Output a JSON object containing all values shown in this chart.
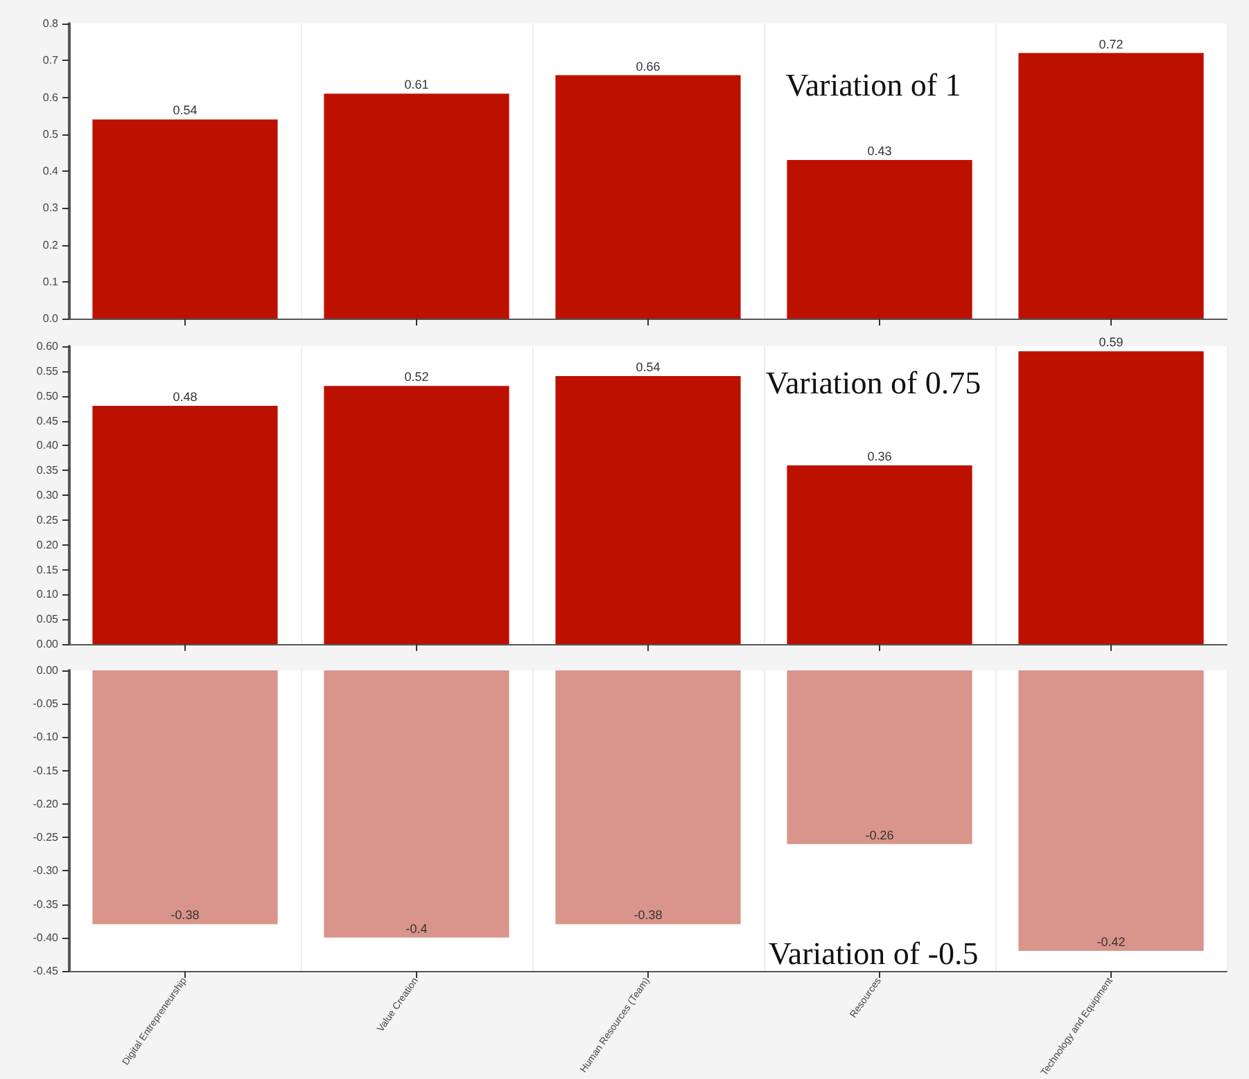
{
  "chart_data": [
    {
      "type": "bar",
      "title": "Variation of 1",
      "categories": [
        null,
        null,
        null,
        null,
        null
      ],
      "values": [
        0.54,
        0.61,
        0.66,
        0.43,
        0.72
      ],
      "color": "#bd1100",
      "data_labels": true,
      "ylim": [
        0,
        0.8
      ],
      "yticks": [
        {
          "value": 0,
          "label": "0.0"
        },
        0.1,
        0.2,
        0.3,
        0.4,
        0.5,
        0.6,
        0.7,
        0.8
      ],
      "grid": "x",
      "tick_labels": "y"
    },
    {
      "type": "bar",
      "title": "Variation of 0.75",
      "categories": [
        null,
        null,
        null,
        null,
        null
      ],
      "values": [
        0.48,
        0.52,
        0.54,
        0.36,
        0.59
      ],
      "color": "#bd1100",
      "data_labels": true,
      "ylim": [
        0,
        0.6
      ],
      "yticks": [
        {
          "value": 0,
          "label": "0.00"
        },
        0.05,
        {
          "value": 0.1,
          "label": "0.10"
        },
        0.15,
        {
          "value": 0.2,
          "label": "0.20"
        },
        0.25,
        {
          "value": 0.3,
          "label": "0.30"
        },
        0.35,
        {
          "value": 0.4,
          "label": "0.40"
        },
        0.45,
        {
          "value": 0.5,
          "label": "0.50"
        },
        0.55,
        {
          "value": 0.6,
          "label": "0.60"
        }
      ],
      "grid": "x",
      "tick_labels": "y"
    },
    {
      "type": "bar",
      "title": "Variation of -0.5",
      "categories": [
        "Digital Entrepreneurship",
        "Value Creation",
        "Human Resources (Team)",
        "Resources",
        "Technology and Equipment"
      ],
      "values": [
        -0.38,
        -0.4,
        -0.38,
        -0.26,
        -0.42
      ],
      "color": "#d9948b",
      "data_labels": true,
      "ylim": [
        -0.45,
        0
      ],
      "yticks": [
        {
          "value": -0.45,
          "label": "-0.45"
        },
        {
          "value": -0.4,
          "label": "-0.40"
        },
        -0.35,
        {
          "value": -0.3,
          "label": "-0.30"
        },
        -0.25,
        {
          "value": -0.2,
          "label": "-0.20"
        },
        -0.15,
        {
          "value": -0.1,
          "label": "-0.10"
        },
        -0.05,
        {
          "value": 0,
          "label": "0.00"
        }
      ],
      "grid": "x"
    }
  ]
}
